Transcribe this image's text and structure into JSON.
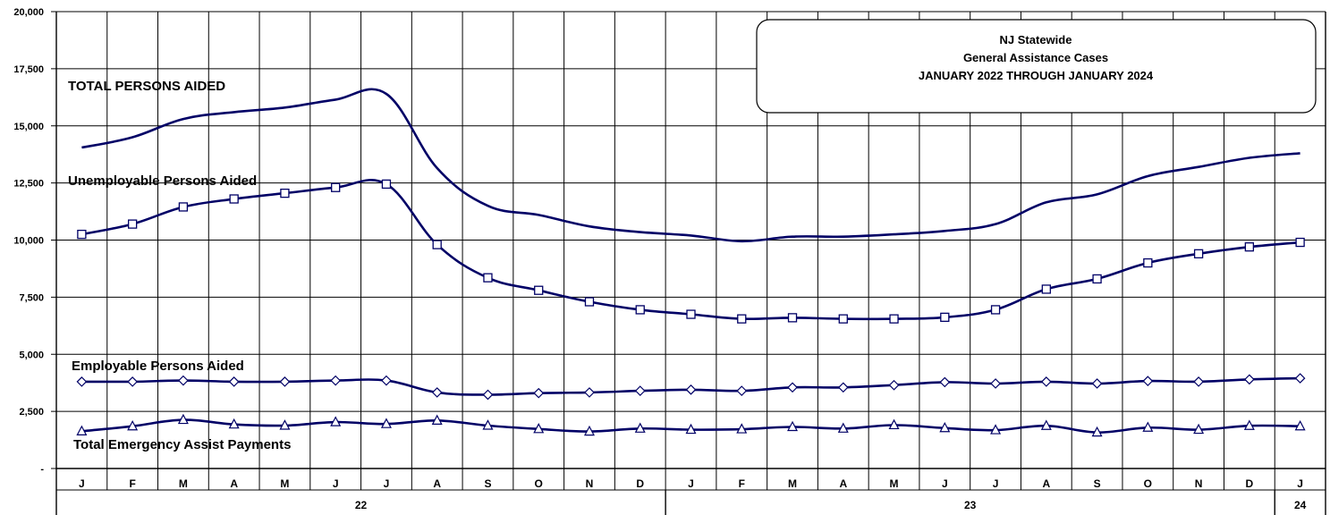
{
  "chart_data": {
    "type": "line",
    "title_lines": [
      "NJ Statewide",
      "General Assistance Cases",
      "JANUARY 2022 THROUGH JANUARY 2024"
    ],
    "categories": [
      "J",
      "F",
      "M",
      "A",
      "M",
      "J",
      "J",
      "A",
      "S",
      "O",
      "N",
      "D",
      "J",
      "F",
      "M",
      "A",
      "M",
      "J",
      "J",
      "A",
      "S",
      "O",
      "N",
      "D",
      "J"
    ],
    "year_labels": [
      {
        "label": "22",
        "start": 0,
        "end": 11
      },
      {
        "label": "23",
        "start": 12,
        "end": 23
      },
      {
        "label": "24",
        "start": 24,
        "end": 24
      }
    ],
    "ylim": [
      0,
      20000
    ],
    "y_ticks": [
      {
        "value": 0,
        "label": "-"
      },
      {
        "value": 2500,
        "label": "2,500"
      },
      {
        "value": 5000,
        "label": "5,000"
      },
      {
        "value": 7500,
        "label": "7,500"
      },
      {
        "value": 10000,
        "label": "10,000"
      },
      {
        "value": 12500,
        "label": "12,500"
      },
      {
        "value": 15000,
        "label": "15,000"
      },
      {
        "value": 17500,
        "label": "17,500"
      },
      {
        "value": 20000,
        "label": "20,000"
      }
    ],
    "grid": true,
    "line_color": "#000066",
    "series": [
      {
        "name": "TOTAL PERSONS AIDED",
        "marker": "none",
        "values": [
          14050,
          14500,
          15300,
          15600,
          15800,
          16150,
          16400,
          13150,
          11500,
          11100,
          10600,
          10350,
          10200,
          9950,
          10150,
          10150,
          10250,
          10400,
          10700,
          11650,
          12000,
          12800,
          13200,
          13600,
          13800
        ]
      },
      {
        "name": "Unemployable Persons Aided",
        "marker": "square",
        "values": [
          10250,
          10700,
          11450,
          11800,
          12050,
          12300,
          12450,
          9800,
          8350,
          7800,
          7300,
          6950,
          6750,
          6550,
          6600,
          6550,
          6550,
          6620,
          6950,
          7850,
          8300,
          9000,
          9400,
          9700,
          9900
        ]
      },
      {
        "name": "Employable Persons Aided",
        "marker": "diamond",
        "values": [
          3800,
          3800,
          3850,
          3800,
          3800,
          3850,
          3850,
          3330,
          3230,
          3300,
          3330,
          3400,
          3450,
          3400,
          3550,
          3550,
          3650,
          3780,
          3720,
          3800,
          3720,
          3830,
          3800,
          3900,
          3950
        ]
      },
      {
        "name": "Total Emergency Assist Payments",
        "marker": "triangle",
        "values": [
          1630,
          1850,
          2130,
          1930,
          1880,
          2030,
          1950,
          2100,
          1880,
          1730,
          1620,
          1750,
          1700,
          1720,
          1820,
          1750,
          1900,
          1770,
          1680,
          1870,
          1580,
          1790,
          1700,
          1870,
          1850
        ]
      }
    ]
  }
}
